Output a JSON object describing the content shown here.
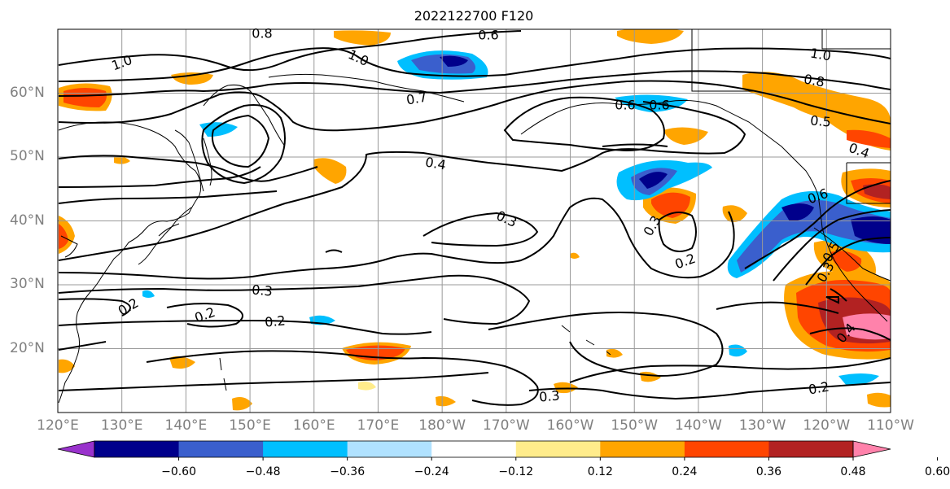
{
  "title": "2022122700 F120",
  "map": {
    "lon_range": [
      120,
      250
    ],
    "lat_range": [
      10,
      70
    ],
    "x_ticks": [
      "120°E",
      "130°E",
      "140°E",
      "150°E",
      "160°E",
      "170°E",
      "180°W",
      "170°W",
      "160°W",
      "150°W",
      "140°W",
      "130°W",
      "120°W",
      "110°W"
    ],
    "y_ticks": [
      "20°N",
      "30°N",
      "40°N",
      "50°N",
      "60°N"
    ],
    "grid": true
  },
  "colorbar": {
    "ticks": [
      "−0.60",
      "−0.48",
      "−0.36",
      "−0.24",
      "−0.12",
      "0.12",
      "0.24",
      "0.36",
      "0.48",
      "0.60"
    ],
    "colors": [
      "#9932cc",
      "#00008b",
      "#3a5fcd",
      "#00bfff",
      "#b0e2ff",
      "#ffffff",
      "#ffec8b",
      "#ffa500",
      "#ff4500",
      "#b22222",
      "#ff82ab"
    ],
    "extend": "both"
  },
  "contour_labels": [
    "0.8",
    "1.0",
    "1.0",
    "0.7",
    "0.6",
    "0.6",
    "0.8",
    "1.0",
    "0.5",
    "0.4",
    "0.4",
    "0.3",
    "0.3",
    "0.2",
    "0.2",
    "0.2",
    "0.2",
    "0.3",
    "0.6",
    "0.5",
    "0.3",
    "0.4",
    "0.2",
    "0.3",
    "0.6"
  ]
}
